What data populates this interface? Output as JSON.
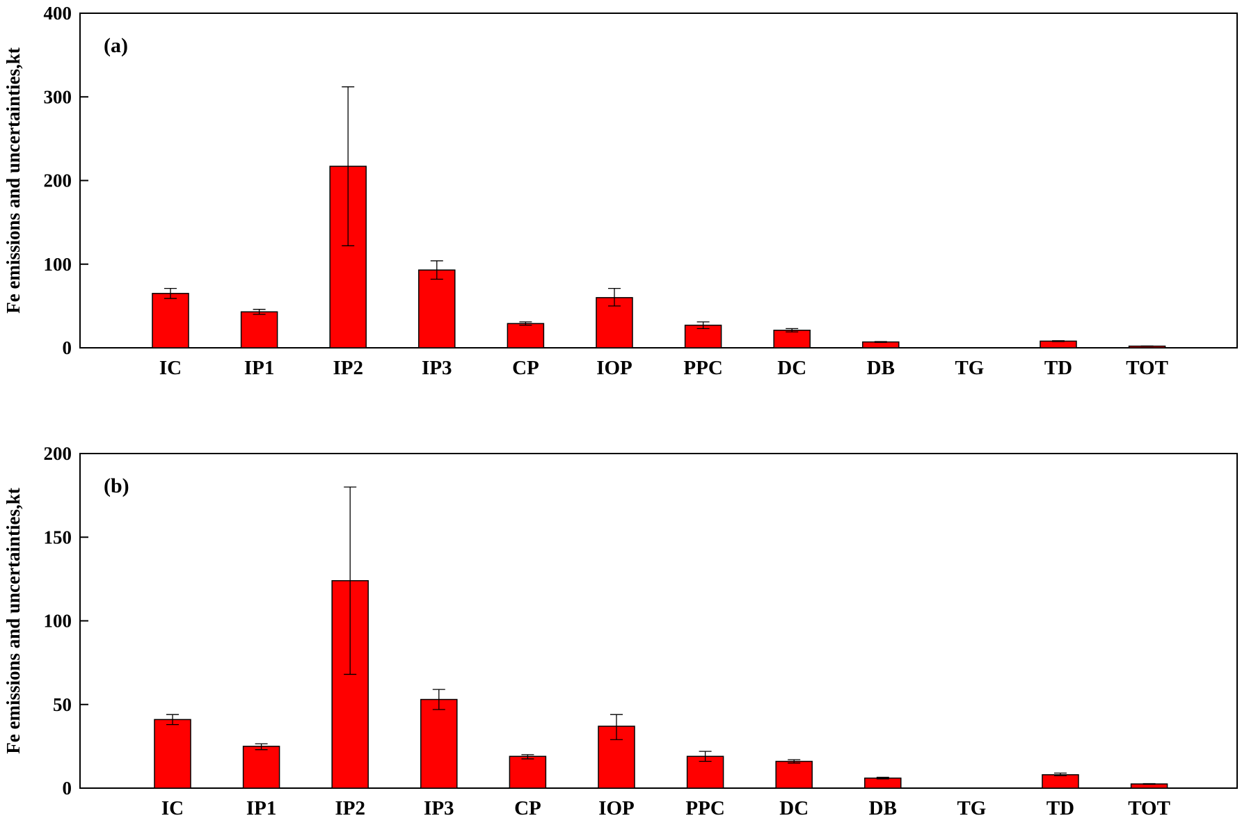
{
  "chart_data": [
    {
      "type": "bar",
      "panel_label": "(a)",
      "ylabel": "Fe emissions and uncertainties,kt",
      "ylim": [
        0,
        400
      ],
      "yticks": [
        "0",
        "100",
        "200",
        "300",
        "400"
      ],
      "categories": [
        "IC",
        "IP1",
        "IP2",
        "IP3",
        "CP",
        "IOP",
        "PPC",
        "DC",
        "DB",
        "TG",
        "TD",
        "TOT"
      ],
      "values": [
        65,
        43,
        217,
        93,
        29,
        60,
        27,
        21,
        7,
        0,
        8,
        2
      ],
      "error_low": [
        59,
        40,
        122,
        82,
        27,
        50,
        23,
        19,
        6.5,
        0,
        7.5,
        1.8
      ],
      "error_high": [
        71,
        46,
        312,
        104,
        31,
        71,
        31,
        23,
        7.5,
        0,
        8.5,
        2.2
      ],
      "bar_color": "#ff0000",
      "grid": false
    },
    {
      "type": "bar",
      "panel_label": "(b)",
      "ylabel": "Fe emissions and uncertainties,kt",
      "ylim": [
        0,
        200
      ],
      "yticks": [
        "0",
        "50",
        "100",
        "150",
        "200"
      ],
      "categories": [
        "IC",
        "IP1",
        "IP2",
        "IP3",
        "CP",
        "IOP",
        "PPC",
        "DC",
        "DB",
        "TG",
        "TD",
        "TOT"
      ],
      "values": [
        41,
        25,
        124,
        53,
        19,
        37,
        19,
        16,
        6,
        0,
        8,
        2.5
      ],
      "error_low": [
        38,
        23,
        68,
        47,
        17.5,
        29,
        16,
        15,
        5.5,
        0,
        7.5,
        2.3
      ],
      "error_high": [
        44,
        26.5,
        180,
        59,
        20,
        44,
        22,
        17,
        6.5,
        0,
        9,
        2.7
      ],
      "bar_color": "#ff0000",
      "grid": false
    }
  ]
}
